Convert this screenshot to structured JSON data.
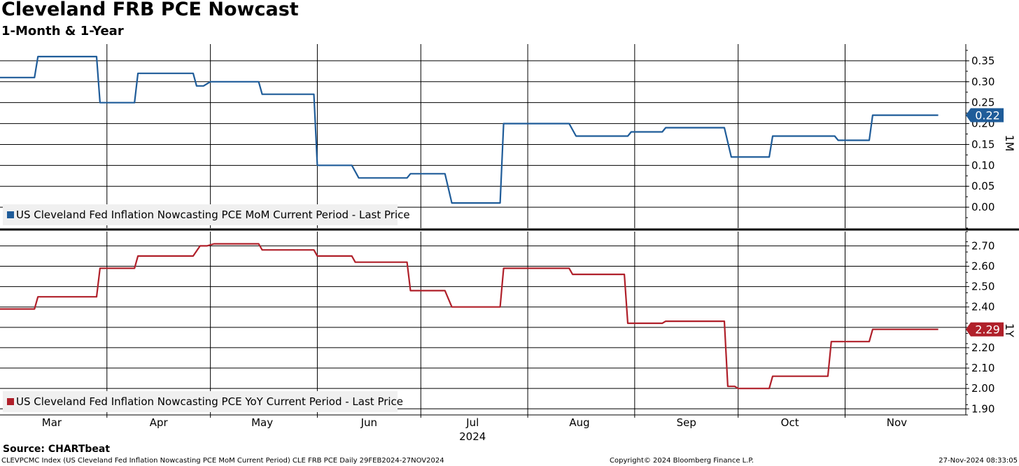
{
  "header": {
    "title": "Cleveland FRB PCE Nowcast",
    "subtitle": "1-Month & 1-Year"
  },
  "footer": {
    "source": "Source: CHARTbeat",
    "ticker_info": "CLEVPCMC Index (US Cleveland Fed Inflation Nowcasting PCE MoM Current Period) CLE FRB PCE  Daily 29FEB2024-27NOV2024",
    "copyright": "Copyright© 2024 Bloomberg Finance L.P.",
    "timestamp": "27-Nov-2024 08:33:05"
  },
  "colors": {
    "mom": "#1f5c99",
    "yoy": "#b0202a"
  },
  "chart_data": [
    {
      "type": "line",
      "panel_label": "1M",
      "x_range": [
        "2024-02-29",
        "2024-11-27"
      ],
      "ylim": [
        -0.05,
        0.39
      ],
      "yticks": [
        "0.35",
        "0.30",
        "0.25",
        "0.20",
        "0.15",
        "0.10",
        "0.05",
        "0.00"
      ],
      "grid": true,
      "legend_position": "bottom-left",
      "series": [
        {
          "name": "US Cleveland Fed Inflation Nowcasting PCE MoM Current Period - Last Price",
          "last_value_label": "0.22",
          "points": [
            [
              "2024-02-29",
              0.31
            ],
            [
              "2024-03-10",
              0.31
            ],
            [
              "2024-03-11",
              0.36
            ],
            [
              "2024-03-28",
              0.36
            ],
            [
              "2024-03-29",
              0.25
            ],
            [
              "2024-04-08",
              0.25
            ],
            [
              "2024-04-09",
              0.32
            ],
            [
              "2024-04-25",
              0.32
            ],
            [
              "2024-04-26",
              0.29
            ],
            [
              "2024-04-28",
              0.29
            ],
            [
              "2024-04-30",
              0.3
            ],
            [
              "2024-05-14",
              0.3
            ],
            [
              "2024-05-15",
              0.27
            ],
            [
              "2024-05-30",
              0.27
            ],
            [
              "2024-05-31",
              0.1
            ],
            [
              "2024-06-10",
              0.1
            ],
            [
              "2024-06-12",
              0.07
            ],
            [
              "2024-06-26",
              0.07
            ],
            [
              "2024-06-27",
              0.08
            ],
            [
              "2024-07-07",
              0.08
            ],
            [
              "2024-07-09",
              0.01
            ],
            [
              "2024-07-23",
              0.01
            ],
            [
              "2024-07-24",
              0.2
            ],
            [
              "2024-08-12",
              0.2
            ],
            [
              "2024-08-14",
              0.17
            ],
            [
              "2024-08-29",
              0.17
            ],
            [
              "2024-08-30",
              0.18
            ],
            [
              "2024-09-08",
              0.18
            ],
            [
              "2024-09-09",
              0.19
            ],
            [
              "2024-09-26",
              0.19
            ],
            [
              "2024-09-28",
              0.12
            ],
            [
              "2024-10-09",
              0.12
            ],
            [
              "2024-10-10",
              0.17
            ],
            [
              "2024-10-28",
              0.17
            ],
            [
              "2024-10-29",
              0.16
            ],
            [
              "2024-11-07",
              0.16
            ],
            [
              "2024-11-08",
              0.22
            ],
            [
              "2024-11-27",
              0.22
            ]
          ]
        }
      ]
    },
    {
      "type": "line",
      "panel_label": "1Y",
      "x_range": [
        "2024-02-29",
        "2024-11-27"
      ],
      "ylim": [
        1.87,
        2.77
      ],
      "yticks": [
        "2.70",
        "2.60",
        "2.50",
        "2.40",
        "2.30",
        "2.20",
        "2.10",
        "2.00",
        "1.90"
      ],
      "grid": true,
      "legend_position": "bottom-left",
      "series": [
        {
          "name": "US Cleveland Fed Inflation Nowcasting PCE YoY Current Period - Last Price",
          "last_value_label": "2.29",
          "points": [
            [
              "2024-02-29",
              2.39
            ],
            [
              "2024-03-10",
              2.39
            ],
            [
              "2024-03-11",
              2.45
            ],
            [
              "2024-03-28",
              2.45
            ],
            [
              "2024-03-29",
              2.59
            ],
            [
              "2024-04-08",
              2.59
            ],
            [
              "2024-04-09",
              2.65
            ],
            [
              "2024-04-25",
              2.65
            ],
            [
              "2024-04-27",
              2.7
            ],
            [
              "2024-04-29",
              2.7
            ],
            [
              "2024-05-01",
              2.71
            ],
            [
              "2024-05-14",
              2.71
            ],
            [
              "2024-05-15",
              2.68
            ],
            [
              "2024-05-30",
              2.68
            ],
            [
              "2024-05-31",
              2.65
            ],
            [
              "2024-06-10",
              2.65
            ],
            [
              "2024-06-11",
              2.62
            ],
            [
              "2024-06-26",
              2.62
            ],
            [
              "2024-06-27",
              2.48
            ],
            [
              "2024-07-07",
              2.48
            ],
            [
              "2024-07-09",
              2.4
            ],
            [
              "2024-07-23",
              2.4
            ],
            [
              "2024-07-24",
              2.59
            ],
            [
              "2024-08-12",
              2.59
            ],
            [
              "2024-08-13",
              2.56
            ],
            [
              "2024-08-28",
              2.56
            ],
            [
              "2024-08-29",
              2.32
            ],
            [
              "2024-09-08",
              2.32
            ],
            [
              "2024-09-09",
              2.33
            ],
            [
              "2024-09-26",
              2.33
            ],
            [
              "2024-09-27",
              2.01
            ],
            [
              "2024-09-29",
              2.01
            ],
            [
              "2024-09-30",
              2.0
            ],
            [
              "2024-10-09",
              2.0
            ],
            [
              "2024-10-10",
              2.06
            ],
            [
              "2024-10-26",
              2.06
            ],
            [
              "2024-10-27",
              2.23
            ],
            [
              "2024-11-07",
              2.23
            ],
            [
              "2024-11-08",
              2.29
            ],
            [
              "2024-11-27",
              2.29
            ]
          ]
        }
      ]
    }
  ],
  "x_axis": {
    "month_labels": [
      {
        "label": "Mar",
        "date": "2024-03-15"
      },
      {
        "label": "Apr",
        "date": "2024-04-15"
      },
      {
        "label": "May",
        "date": "2024-05-15"
      },
      {
        "label": "Jun",
        "date": "2024-06-15"
      },
      {
        "label": "Jul",
        "date": "2024-07-15"
      },
      {
        "label": "Aug",
        "date": "2024-08-15"
      },
      {
        "label": "Sep",
        "date": "2024-09-15"
      },
      {
        "label": "Oct",
        "date": "2024-10-15"
      },
      {
        "label": "Nov",
        "date": "2024-11-15"
      }
    ],
    "month_boundaries": [
      "2024-03-31",
      "2024-04-30",
      "2024-05-31",
      "2024-06-30",
      "2024-07-31",
      "2024-08-31",
      "2024-09-30",
      "2024-10-31"
    ],
    "year_label": "2024"
  }
}
